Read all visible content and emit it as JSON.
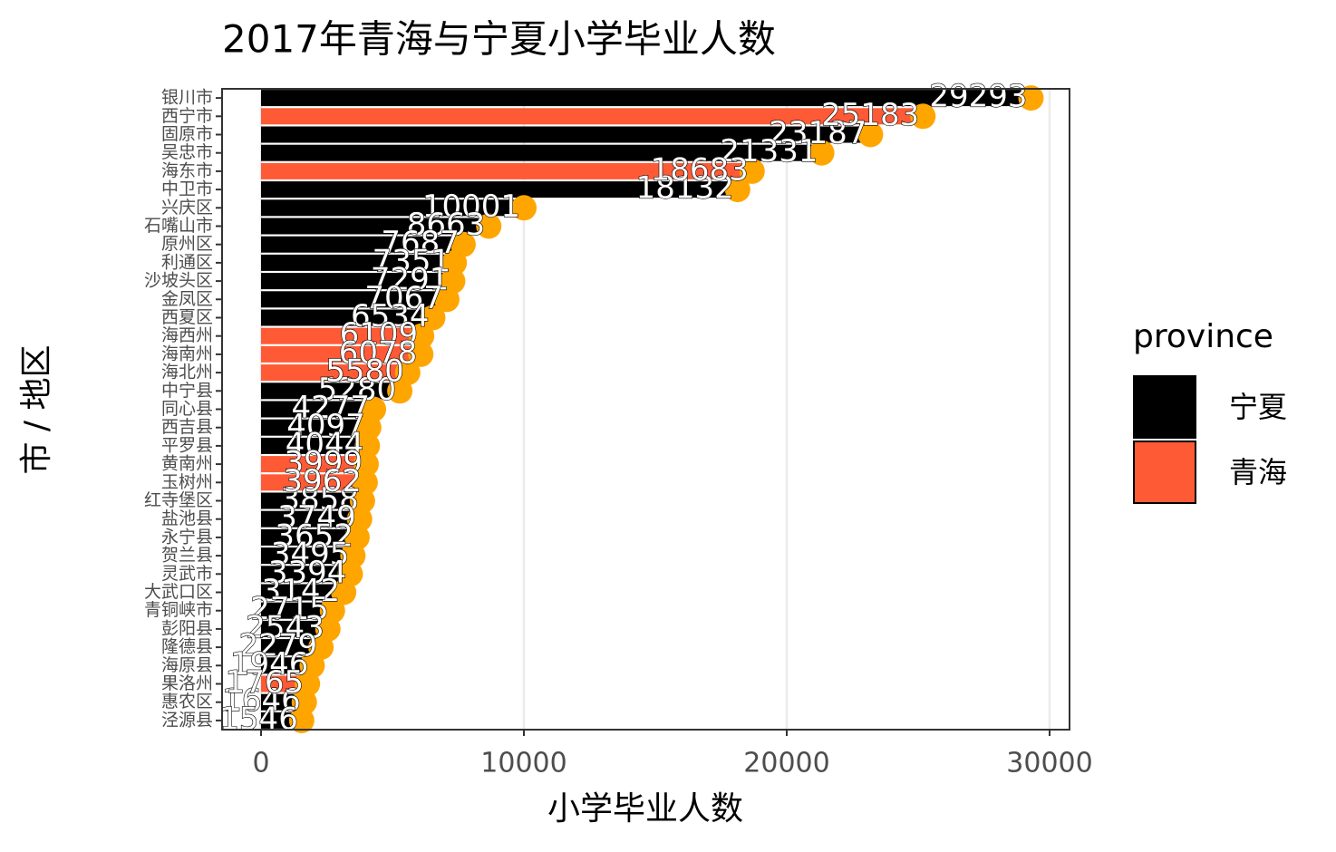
{
  "chart_data": {
    "type": "bar",
    "orientation": "horizontal",
    "title": "2017年青海与宁夏小学毕业人数",
    "xlabel": "小学毕业人数",
    "ylabel": "市 / 地区",
    "categories": [
      "银川市",
      "西宁市",
      "固原市",
      "吴忠市",
      "海东市",
      "中卫市",
      "兴庆区",
      "石嘴山市",
      "原州区",
      "利通区",
      "沙坡头区",
      "金凤区",
      "西夏区",
      "海西州",
      "海南州",
      "海北州",
      "中宁县",
      "同心县",
      "西吉县",
      "平罗县",
      "黄南州",
      "玉树州",
      "红寺堡区",
      "盐池县",
      "永宁县",
      "贺兰县",
      "灵武市",
      "大武口区",
      "青铜峡市",
      "彭阳县",
      "隆德县",
      "海原县",
      "果洛州",
      "惠农区",
      "泾源县"
    ],
    "series": [
      {
        "name": "宁夏",
        "color": "#000000",
        "values": [
          29293,
          null,
          23187,
          21331,
          null,
          18132,
          10001,
          8663,
          7687,
          7351,
          7291,
          7067,
          6534,
          null,
          null,
          null,
          5280,
          4277,
          4097,
          4044,
          null,
          null,
          3858,
          3749,
          3652,
          3495,
          3394,
          3142,
          2715,
          2543,
          2279,
          1946,
          null,
          1646,
          1546
        ]
      },
      {
        "name": "青海",
        "color": "#ff5a36",
        "values": [
          null,
          25183,
          null,
          null,
          18683,
          null,
          null,
          null,
          null,
          null,
          null,
          null,
          null,
          6109,
          6078,
          5580,
          null,
          null,
          null,
          null,
          3999,
          3962,
          null,
          null,
          null,
          null,
          null,
          null,
          null,
          null,
          null,
          null,
          1765,
          null,
          null
        ]
      }
    ],
    "point_color": "#ffa500",
    "legend_title": "province",
    "xlim": [
      -1483,
      30759
    ],
    "xticks": [
      0,
      10000,
      20000,
      30000
    ],
    "grid": true
  }
}
